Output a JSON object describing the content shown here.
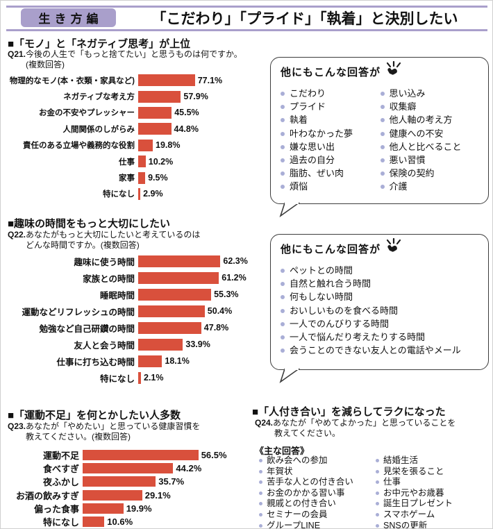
{
  "header": {
    "badge": "生き方編",
    "title": "「こだわり」「プライド」「執着」と決別したい"
  },
  "colors": {
    "bar": "#d9503c",
    "lavender": "#a99fcb",
    "bullet": "#a9aed6"
  },
  "sections": {
    "s1": {
      "heading": "■「モノ」と「ネガティブ思考」が上位",
      "q_label": "Q21.",
      "q_text": "今後の人生で「もっと捨てたい」と思うものは何ですか。",
      "q_text2": "(複数回答)"
    },
    "s2": {
      "heading": "■趣味の時間をもっと大切にしたい",
      "q_label": "Q22.",
      "q_text": "あなたがもっと大切にしたいと考えているのは",
      "q_text2": "どんな時間ですか。(複数回答)"
    },
    "s3": {
      "heading": "■「運動不足」を何とかしたい人多数",
      "q_label": "Q23.",
      "q_text": "あなたが「やめたい」と思っている健康習慣を",
      "q_text2": "教えてください。(複数回答)"
    },
    "s4": {
      "heading": "■「人付き合い」を減らしてラクになった",
      "q_label": "Q24.",
      "q_text": "あなたが「やめてよかった」と思っていることを",
      "q_text2": "教えてください。",
      "answers_label": "《主な回答》",
      "left": [
        "飲み会への参加",
        "年賀状",
        "苦手な人との付き合い",
        "お金のかかる習い事",
        "親戚との付き合い",
        "セミナーの会員",
        "グループLINE"
      ],
      "right": [
        "結婚生活",
        "見栄を張ること",
        "仕事",
        "お中元やお歳暮",
        "誕生日プレゼント",
        "スマホゲーム",
        "SNSの更新"
      ]
    }
  },
  "bubble1": {
    "header": "他にもこんな回答が",
    "left": [
      "こだわり",
      "プライド",
      "執着",
      "叶わなかった夢",
      "嫌な思い出",
      "過去の自分",
      "脂肪、ぜい肉",
      "煩悩"
    ],
    "right": [
      "思い込み",
      "収集癖",
      "他人軸の考え方",
      "健康への不安",
      "他人と比べること",
      "悪い習慣",
      "保険の契約",
      "介護"
    ]
  },
  "bubble2": {
    "header": "他にもこんな回答が",
    "items": [
      "ペットとの時間",
      "自然と触れ合う時間",
      "何もしない時間",
      "おいしいものを食べる時間",
      "一人でのんびりする時間",
      "一人で悩んだり考えたりする時間",
      "会うことのできない友人との電話やメール"
    ]
  },
  "chart_data": [
    {
      "type": "bar",
      "orientation": "horizontal",
      "title": "Q21. 今後の人生で「もっと捨てたい」と思うものは何ですか。(複数回答)",
      "unit": "%",
      "xlim": [
        0,
        100
      ],
      "categories": [
        "物理的なモノ(本・衣類・家具など)",
        "ネガティブな考え方",
        "お金の不安やプレッシャー",
        "人間関係のしがらみ",
        "責任のある立場や義務的な役割",
        "仕事",
        "家事",
        "特になし"
      ],
      "values": [
        77.1,
        57.9,
        45.5,
        44.8,
        19.8,
        10.2,
        9.5,
        2.9
      ]
    },
    {
      "type": "bar",
      "orientation": "horizontal",
      "title": "Q22. あなたがもっと大切にしたいと考えているのはどんな時間ですか。(複数回答)",
      "unit": "%",
      "xlim": [
        0,
        100
      ],
      "categories": [
        "趣味に使う時間",
        "家族との時間",
        "睡眠時間",
        "運動などリフレッシュの時間",
        "勉強など自己研鑽の時間",
        "友人と会う時間",
        "仕事に打ち込む時間",
        "特になし"
      ],
      "values": [
        62.3,
        61.2,
        55.3,
        50.4,
        47.8,
        33.9,
        18.1,
        2.1
      ]
    },
    {
      "type": "bar",
      "orientation": "horizontal",
      "title": "Q23. あなたが「やめたい」と思っている健康習慣を教えてください。(複数回答)",
      "unit": "%",
      "xlim": [
        0,
        100
      ],
      "categories": [
        "運動不足",
        "食べすぎ",
        "夜ふかし",
        "お酒の飲みすぎ",
        "偏った食事",
        "特になし"
      ],
      "values": [
        56.5,
        44.2,
        35.7,
        29.1,
        19.9,
        10.6
      ]
    }
  ]
}
